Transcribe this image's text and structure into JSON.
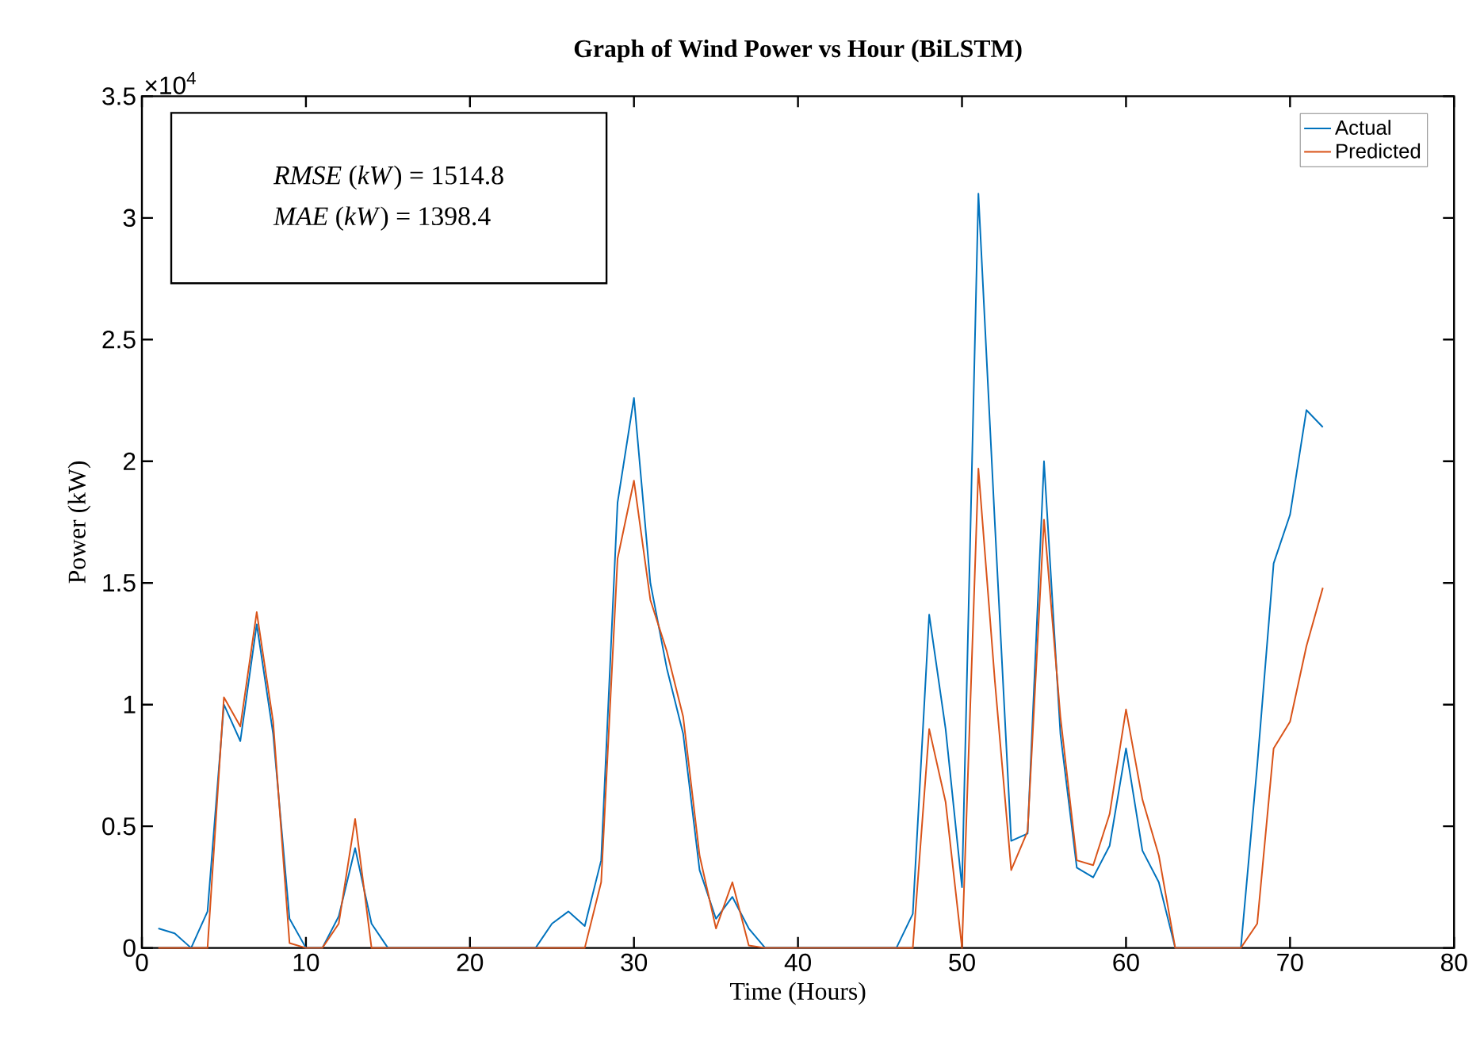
{
  "chart_data": {
    "type": "line",
    "title": "Graph of Wind Power vs Hour (BiLSTM)",
    "xlabel": "Time (Hours)",
    "ylabel": "Power (kW)",
    "annotations": [
      "×10$^{4}$",
      "*RMSE* (*kW*) = 1514.8",
      "*MAE* (*kW*) = 1398.4"
    ],
    "x": [
      1,
      2,
      3,
      4,
      5,
      6,
      7,
      8,
      9,
      10,
      11,
      12,
      13,
      14,
      15,
      16,
      17,
      18,
      19,
      20,
      21,
      22,
      23,
      24,
      25,
      26,
      27,
      28,
      29,
      30,
      31,
      32,
      33,
      34,
      35,
      36,
      37,
      38,
      39,
      40,
      41,
      42,
      43,
      44,
      45,
      46,
      47,
      48,
      49,
      50,
      51,
      52,
      53,
      54,
      55,
      56,
      57,
      58,
      59,
      60,
      61,
      62,
      63,
      64,
      65,
      66,
      67,
      68,
      69,
      70,
      71,
      72
    ],
    "series": [
      {
        "name": "Actual",
        "color": "#0072bd",
        "values": [
          0.08,
          0.06,
          0,
          0.15,
          1.0,
          0.85,
          1.33,
          0.88,
          0.12,
          0,
          0,
          0.13,
          0.41,
          0.1,
          0,
          0,
          0,
          0,
          0,
          0,
          0,
          0,
          0,
          0,
          0.1,
          0.15,
          0.09,
          0.36,
          1.83,
          2.26,
          1.5,
          1.15,
          0.88,
          0.32,
          0.12,
          0.21,
          0.08,
          0,
          0,
          0,
          0,
          0,
          0,
          0,
          0,
          0,
          0.14,
          1.37,
          0.9,
          0.25,
          3.1,
          1.75,
          0.44,
          0.47,
          2.0,
          0.88,
          0.33,
          0.29,
          0.42,
          0.82,
          0.4,
          0.27,
          0,
          0,
          0,
          0,
          0,
          0.75,
          1.58,
          1.78,
          2.21,
          2.14
        ]
      },
      {
        "name": "Predicted",
        "color": "#d95319",
        "values": [
          0,
          0,
          0,
          0,
          1.03,
          0.91,
          1.38,
          0.93,
          0.02,
          0,
          0,
          0.1,
          0.53,
          0,
          0,
          0,
          0,
          0,
          0,
          0,
          0,
          0,
          0,
          0,
          0,
          0,
          0,
          0.27,
          1.6,
          1.92,
          1.43,
          1.22,
          0.95,
          0.38,
          0.08,
          0.27,
          0.01,
          0,
          0,
          0,
          0,
          0,
          0,
          0,
          0,
          0,
          0,
          0.9,
          0.6,
          0,
          1.97,
          1.1,
          0.32,
          0.48,
          1.76,
          0.95,
          0.36,
          0.34,
          0.55,
          0.98,
          0.61,
          0.38,
          0,
          0,
          0,
          0,
          0,
          0.1,
          0.82,
          0.93,
          1.24,
          1.48
        ]
      }
    ],
    "xlim": [
      0,
      80
    ],
    "xticks": [
      0,
      10,
      20,
      30,
      40,
      50,
      60,
      70,
      80
    ],
    "ylim": [
      0,
      3.5
    ],
    "yticks": [
      0,
      0.5,
      1,
      1.5,
      2,
      2.5,
      3,
      3.5
    ],
    "grid": false,
    "legend": "top right",
    "marker": "none",
    "line_style": "solid"
  }
}
